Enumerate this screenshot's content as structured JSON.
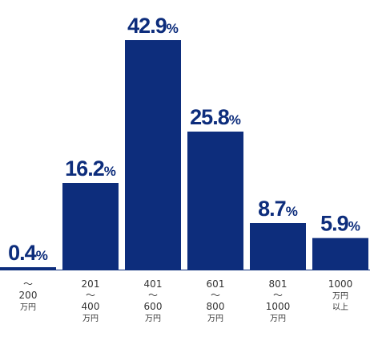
{
  "chart_data": {
    "type": "bar",
    "categories": [
      [
        "〜",
        "200",
        "万円"
      ],
      [
        "201",
        "〜",
        "400",
        "万円"
      ],
      [
        "401",
        "〜",
        "600",
        "万円"
      ],
      [
        "601",
        "〜",
        "800",
        "万円"
      ],
      [
        "801",
        "〜",
        "1000",
        "万円"
      ],
      [
        "1000",
        "万円",
        "以上"
      ]
    ],
    "values": [
      0.4,
      16.2,
      42.9,
      25.8,
      8.7,
      5.9
    ],
    "value_labels": [
      "0.4",
      "16.2",
      "42.9",
      "25.8",
      "8.7",
      "5.9"
    ],
    "unit": "%",
    "bar_color": "#0d2d7c",
    "baseline_color": "#0d2d7c",
    "grid": false,
    "legend": "none"
  }
}
